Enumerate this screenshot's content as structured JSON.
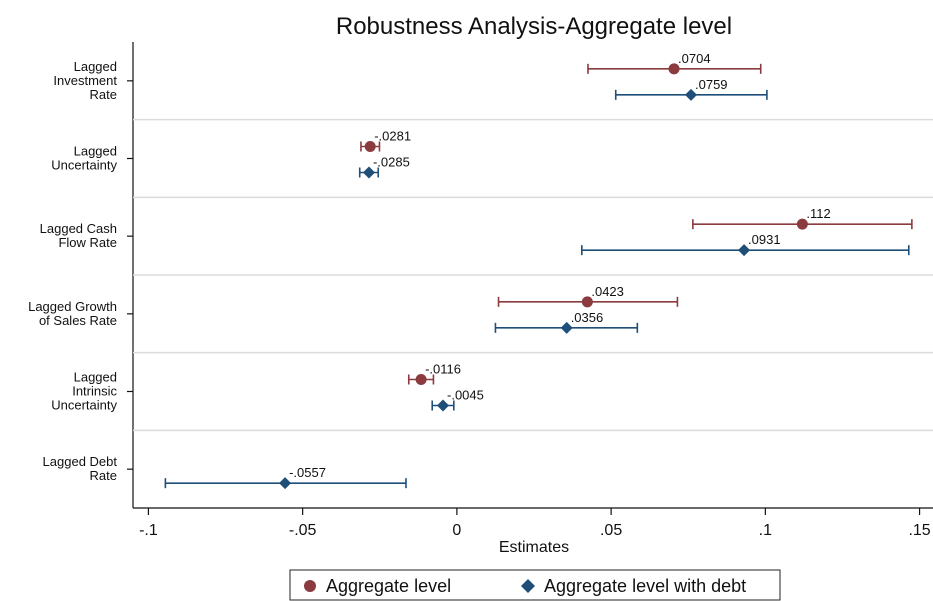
{
  "chart_data": {
    "type": "scatter",
    "title": "Robustness Analysis-Aggregate level",
    "xlabel": "Estimates",
    "ylabel": "",
    "xlim": [
      -0.105,
      0.155
    ],
    "xticks": [
      -0.1,
      -0.05,
      0,
      0.05,
      0.1,
      0.15
    ],
    "xtick_labels": [
      "-.1",
      "-.05",
      "0",
      ".05",
      ".1",
      ".15"
    ],
    "grid": "horizontal separators between categories",
    "legend_position": "bottom",
    "categories": [
      [
        "Lagged",
        "Investment",
        "Rate"
      ],
      [
        "Lagged",
        "Uncertainty"
      ],
      [
        "Lagged Cash",
        "Flow Rate"
      ],
      [
        "Lagged Growth",
        "of Sales Rate"
      ],
      [
        "Lagged",
        "Intrinsic",
        "Uncertainty"
      ],
      [
        "Lagged Debt",
        "Rate"
      ]
    ],
    "series": [
      {
        "name": "Aggregate level",
        "color": "#8b3a3e",
        "marker": "circle",
        "points": [
          {
            "est": 0.0704,
            "lo": 0.0425,
            "hi": 0.0985,
            "label": ".0704"
          },
          {
            "est": -0.0281,
            "lo": -0.0311,
            "hi": -0.0251,
            "label": "-.0281"
          },
          {
            "est": 0.112,
            "lo": 0.0765,
            "hi": 0.1475,
            "label": ".112"
          },
          {
            "est": 0.0423,
            "lo": 0.0135,
            "hi": 0.0715,
            "label": ".0423"
          },
          {
            "est": -0.0116,
            "lo": -0.0156,
            "hi": -0.0076,
            "label": "-.0116"
          },
          null
        ]
      },
      {
        "name": "Aggregate level with debt",
        "color": "#1f4e79",
        "marker": "diamond",
        "points": [
          {
            "est": 0.0759,
            "lo": 0.0515,
            "hi": 0.1005,
            "label": ".0759"
          },
          {
            "est": -0.0285,
            "lo": -0.0315,
            "hi": -0.0255,
            "label": "-.0285"
          },
          {
            "est": 0.0931,
            "lo": 0.0405,
            "hi": 0.1465,
            "label": ".0931"
          },
          {
            "est": 0.0356,
            "lo": 0.0125,
            "hi": 0.0585,
            "label": ".0356"
          },
          {
            "est": -0.0045,
            "lo": -0.008,
            "hi": -0.001,
            "label": "-.0045"
          },
          {
            "est": -0.0557,
            "lo": -0.0945,
            "hi": -0.0165,
            "label": "-.0557"
          }
        ]
      }
    ]
  }
}
